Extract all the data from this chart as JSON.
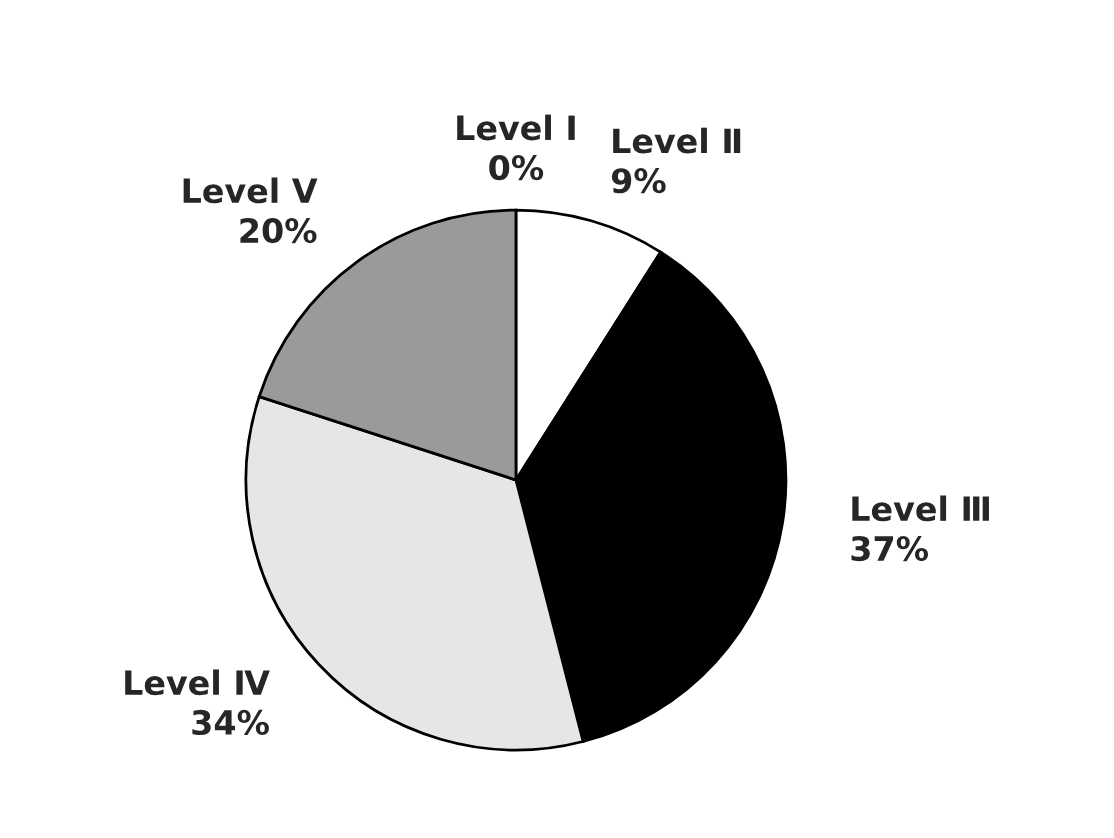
{
  "chart_data": {
    "type": "pie",
    "categories": [
      "Level Ⅰ",
      "Level Ⅱ",
      "Level Ⅲ",
      "Level Ⅳ",
      "Level Ⅴ"
    ],
    "values": [
      0,
      9,
      37,
      34,
      20
    ],
    "colors": [
      "#ffffff",
      "#ffffff",
      "#000000",
      "#e6e6e6",
      "#9a9a9a"
    ],
    "value_labels": [
      "0%",
      "9%",
      "37%",
      "34%",
      "20%"
    ]
  }
}
